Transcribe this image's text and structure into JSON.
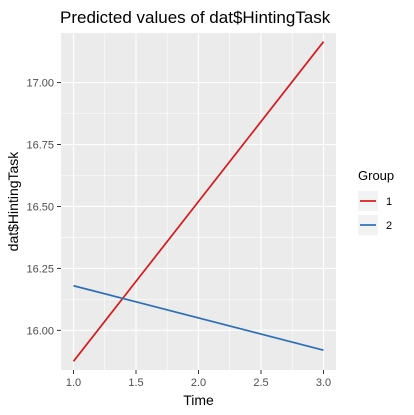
{
  "chart_data": {
    "type": "line",
    "title": "Predicted values of dat$HintingTask",
    "xlabel": "Time",
    "ylabel": "dat$HintingTask",
    "xlim": [
      0.9,
      3.1
    ],
    "ylim": [
      15.84,
      17.2
    ],
    "x_ticks": [
      1.0,
      1.5,
      2.0,
      2.5,
      3.0
    ],
    "x_tick_labels": [
      "1.0",
      "1.5",
      "2.0",
      "2.5",
      "3.0"
    ],
    "y_ticks": [
      16.0,
      16.25,
      16.5,
      16.75,
      17.0
    ],
    "y_tick_labels": [
      "16.00",
      "16.25",
      "16.50",
      "16.75",
      "17.00"
    ],
    "grid": true,
    "legend": {
      "title": "Group",
      "position": "right"
    },
    "series": [
      {
        "name": "1",
        "color": "#d7191c",
        "x": [
          1,
          3
        ],
        "y": [
          15.875,
          17.165
        ]
      },
      {
        "name": "2",
        "color": "#2c6fb5",
        "x": [
          1,
          3
        ],
        "y": [
          16.18,
          15.92
        ]
      }
    ]
  }
}
